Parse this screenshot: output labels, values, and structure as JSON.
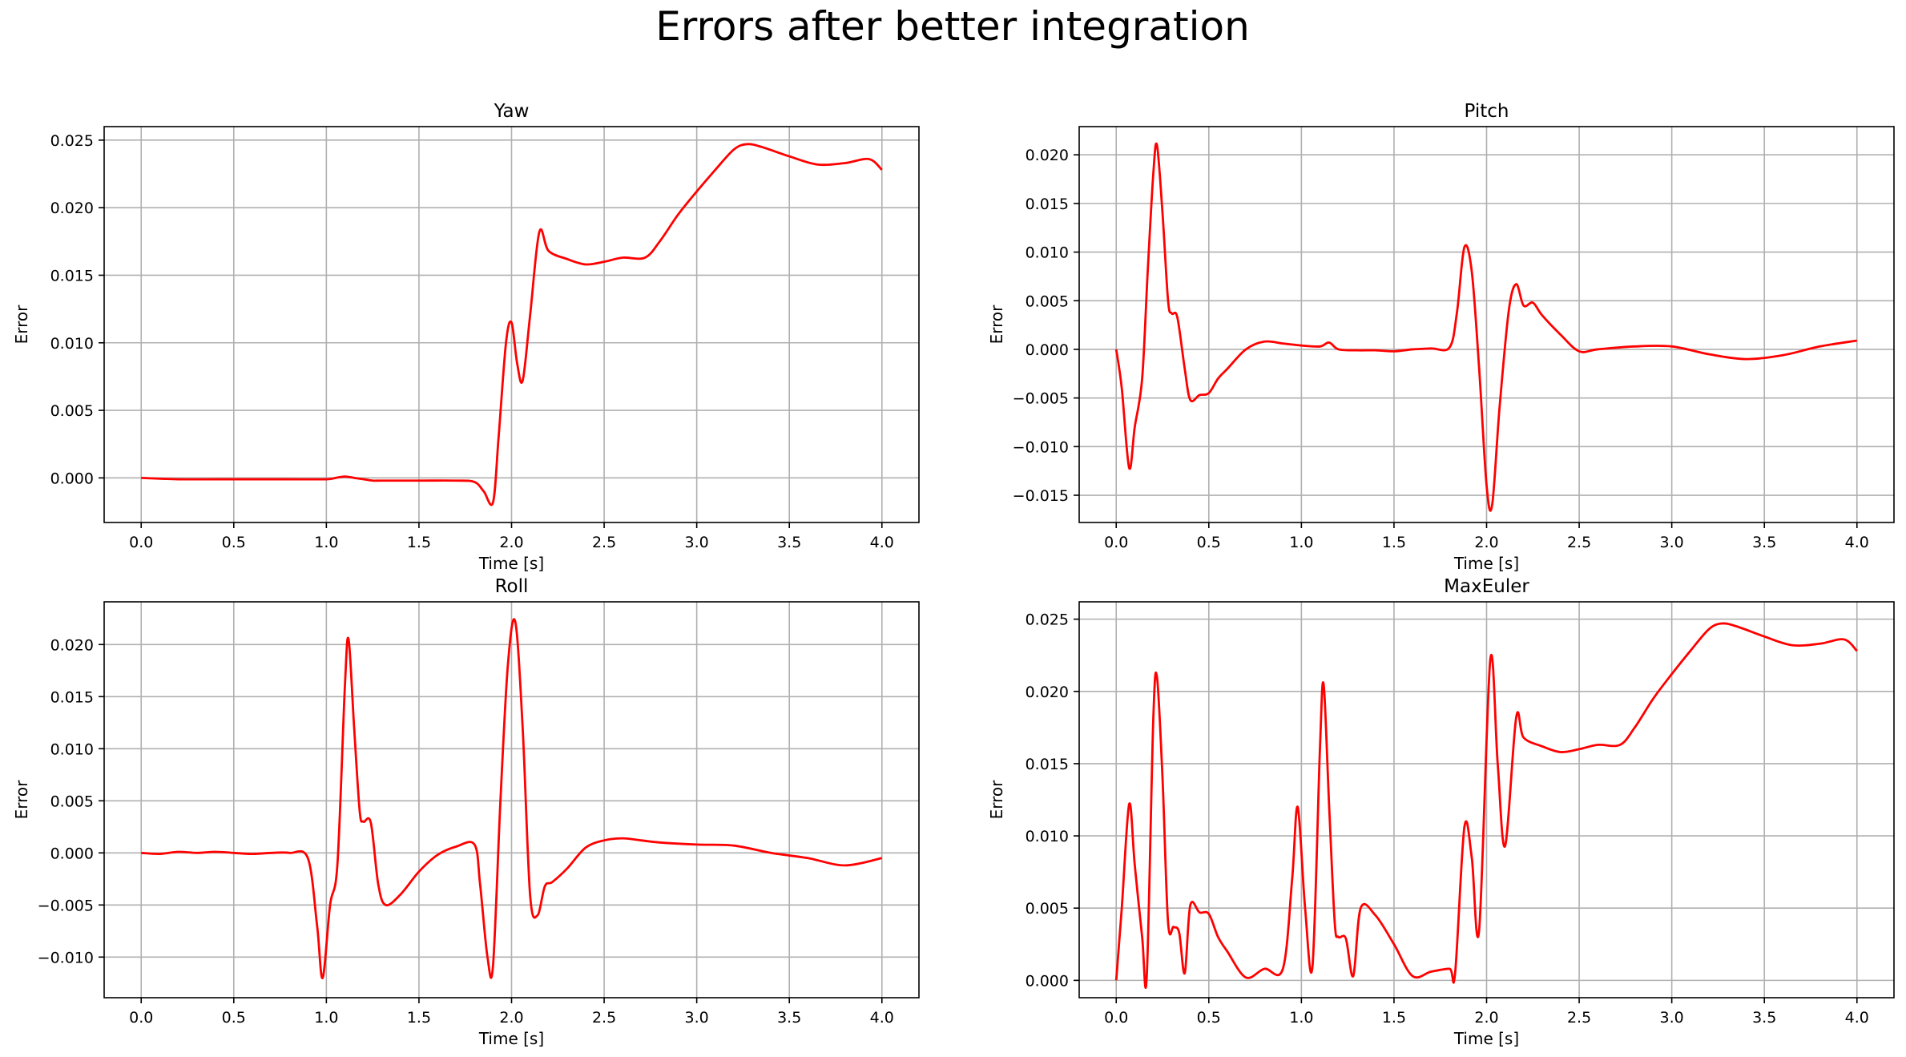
{
  "figure": {
    "title": "Errors after better integration",
    "line_color": "#ff0000",
    "grid_color": "#b0b0b0",
    "axes_color": "#000000"
  },
  "chart_data": [
    {
      "type": "line",
      "title": "Yaw",
      "xlabel": "Time [s]",
      "ylabel": "Error",
      "xlim": [
        -0.2,
        4.2
      ],
      "ylim": [
        -0.0033,
        0.026
      ],
      "xticks": [
        0.0,
        0.5,
        1.0,
        1.5,
        2.0,
        2.5,
        3.0,
        3.5,
        4.0
      ],
      "yticks": [
        0.0,
        0.005,
        0.01,
        0.015,
        0.02,
        0.025
      ],
      "tick_decimals": 3,
      "grid": true,
      "series": [
        {
          "x": [
            0.0,
            0.2,
            0.4,
            0.6,
            0.8,
            1.0,
            1.05,
            1.1,
            1.15,
            1.2,
            1.25,
            1.3,
            1.5,
            1.7,
            1.8,
            1.85,
            1.9,
            1.93,
            1.97,
            2.0,
            2.03,
            2.06,
            2.1,
            2.15,
            2.2,
            2.3,
            2.4,
            2.5,
            2.6,
            2.72,
            2.8,
            2.9,
            3.0,
            3.1,
            3.2,
            3.27,
            3.35,
            3.5,
            3.65,
            3.8,
            3.93,
            4.0
          ],
          "y": [
            0.0,
            -0.0001,
            -0.0001,
            -0.0001,
            -0.0001,
            -0.0001,
            0.0,
            0.0001,
            0.0,
            -0.0001,
            -0.0002,
            -0.0002,
            -0.0002,
            -0.0002,
            -0.0003,
            -0.001,
            -0.0018,
            0.003,
            0.01,
            0.0115,
            0.0085,
            0.0072,
            0.012,
            0.0182,
            0.0168,
            0.0162,
            0.0158,
            0.016,
            0.0163,
            0.0163,
            0.0175,
            0.0195,
            0.0212,
            0.0228,
            0.0243,
            0.0247,
            0.0245,
            0.0238,
            0.0232,
            0.0233,
            0.0236,
            0.0228
          ]
        }
      ]
    },
    {
      "type": "line",
      "title": "Pitch",
      "xlabel": "Time [s]",
      "ylabel": "Error",
      "xlim": [
        -0.2,
        4.2
      ],
      "ylim": [
        -0.0178,
        0.0229
      ],
      "xticks": [
        0.0,
        0.5,
        1.0,
        1.5,
        2.0,
        2.5,
        3.0,
        3.5,
        4.0
      ],
      "yticks": [
        -0.015,
        -0.01,
        -0.005,
        0.0,
        0.005,
        0.01,
        0.015,
        0.02
      ],
      "tick_decimals": 3,
      "grid": true,
      "series": [
        {
          "x": [
            0.0,
            0.03,
            0.07,
            0.1,
            0.14,
            0.17,
            0.2,
            0.22,
            0.25,
            0.28,
            0.3,
            0.33,
            0.37,
            0.4,
            0.45,
            0.5,
            0.55,
            0.6,
            0.7,
            0.8,
            0.9,
            1.0,
            1.1,
            1.15,
            1.2,
            1.3,
            1.4,
            1.5,
            1.6,
            1.7,
            1.8,
            1.84,
            1.88,
            1.92,
            1.96,
            2.0,
            2.03,
            2.07,
            2.12,
            2.16,
            2.2,
            2.25,
            2.3,
            2.4,
            2.5,
            2.6,
            2.8,
            3.0,
            3.2,
            3.4,
            3.6,
            3.8,
            4.0
          ],
          "y": [
            0.0,
            -0.004,
            -0.0122,
            -0.008,
            -0.003,
            0.008,
            0.018,
            0.021,
            0.014,
            0.005,
            0.0037,
            0.0033,
            -0.002,
            -0.0052,
            -0.0047,
            -0.0045,
            -0.003,
            -0.002,
            0.0,
            0.0008,
            0.0006,
            0.0004,
            0.0003,
            0.0007,
            0.0,
            -0.0001,
            -0.0001,
            -0.0002,
            0.0,
            0.0001,
            0.0002,
            0.0038,
            0.0105,
            0.008,
            -0.002,
            -0.014,
            -0.016,
            -0.006,
            0.004,
            0.0067,
            0.0045,
            0.0048,
            0.0035,
            0.0015,
            -0.0002,
            0.0,
            0.0003,
            0.0003,
            -0.0005,
            -0.001,
            -0.0006,
            0.0003,
            0.0009
          ]
        }
      ]
    },
    {
      "type": "line",
      "title": "Roll",
      "xlabel": "Time [s]",
      "ylabel": "Error",
      "xlim": [
        -0.2,
        4.2
      ],
      "ylim": [
        -0.0139,
        0.0241
      ],
      "xticks": [
        0.0,
        0.5,
        1.0,
        1.5,
        2.0,
        2.5,
        3.0,
        3.5,
        4.0
      ],
      "yticks": [
        -0.01,
        -0.005,
        0.0,
        0.005,
        0.01,
        0.015,
        0.02
      ],
      "tick_decimals": 3,
      "grid": true,
      "series": [
        {
          "x": [
            0.0,
            0.1,
            0.2,
            0.3,
            0.4,
            0.5,
            0.6,
            0.7,
            0.8,
            0.9,
            0.95,
            0.98,
            1.02,
            1.06,
            1.1,
            1.12,
            1.15,
            1.18,
            1.2,
            1.24,
            1.28,
            1.32,
            1.4,
            1.5,
            1.6,
            1.7,
            1.8,
            1.83,
            1.87,
            1.9,
            1.94,
            1.98,
            2.02,
            2.06,
            2.1,
            2.14,
            2.18,
            2.22,
            2.3,
            2.4,
            2.5,
            2.6,
            2.7,
            2.8,
            3.0,
            3.2,
            3.4,
            3.6,
            3.8,
            4.0
          ],
          "y": [
            0.0,
            -0.0001,
            0.0001,
            0.0,
            0.0001,
            0.0,
            -0.0001,
            0.0,
            0.0,
            -0.0005,
            -0.007,
            -0.012,
            -0.005,
            -0.001,
            0.016,
            0.0205,
            0.012,
            0.004,
            0.003,
            0.0029,
            -0.003,
            -0.005,
            -0.004,
            -0.0018,
            -0.0002,
            0.0006,
            0.0008,
            -0.003,
            -0.01,
            -0.0108,
            0.005,
            0.018,
            0.0222,
            0.012,
            -0.004,
            -0.006,
            -0.0032,
            -0.0028,
            -0.0015,
            0.0005,
            0.0012,
            0.0014,
            0.0012,
            0.001,
            0.0008,
            0.0007,
            0.0,
            -0.0005,
            -0.0012,
            -0.0005
          ]
        }
      ]
    },
    {
      "type": "line",
      "title": "MaxEuler",
      "xlabel": "Time [s]",
      "ylabel": "Error",
      "xlim": [
        -0.2,
        4.2
      ],
      "ylim": [
        -0.0012,
        0.0262
      ],
      "xticks": [
        0.0,
        0.5,
        1.0,
        1.5,
        2.0,
        2.5,
        3.0,
        3.5,
        4.0
      ],
      "yticks": [
        0.0,
        0.005,
        0.01,
        0.015,
        0.02,
        0.025
      ],
      "tick_decimals": 3,
      "grid": true,
      "series": [
        {
          "x": [
            0.0,
            0.03,
            0.07,
            0.1,
            0.14,
            0.165,
            0.2,
            0.22,
            0.25,
            0.28,
            0.31,
            0.34,
            0.37,
            0.4,
            0.45,
            0.5,
            0.55,
            0.6,
            0.7,
            0.8,
            0.9,
            0.95,
            0.98,
            1.02,
            1.06,
            1.1,
            1.12,
            1.15,
            1.18,
            1.2,
            1.24,
            1.28,
            1.32,
            1.4,
            1.5,
            1.6,
            1.7,
            1.8,
            1.83,
            1.88,
            1.92,
            1.96,
            2.02,
            2.06,
            2.1,
            2.16,
            2.2,
            2.3,
            2.4,
            2.5,
            2.6,
            2.72,
            2.8,
            2.9,
            3.0,
            3.1,
            3.2,
            3.27,
            3.35,
            3.5,
            3.65,
            3.8,
            3.93,
            4.0
          ],
          "y": [
            0.0,
            0.005,
            0.0122,
            0.008,
            0.003,
            0.0003,
            0.018,
            0.021,
            0.014,
            0.004,
            0.0037,
            0.0033,
            0.0005,
            0.0052,
            0.0047,
            0.0046,
            0.003,
            0.002,
            0.0002,
            0.0008,
            0.0008,
            0.007,
            0.012,
            0.005,
            0.001,
            0.016,
            0.0205,
            0.012,
            0.004,
            0.003,
            0.0029,
            0.0003,
            0.005,
            0.0045,
            0.0025,
            0.0003,
            0.0006,
            0.0008,
            0.0005,
            0.0106,
            0.0085,
            0.0035,
            0.0222,
            0.015,
            0.0093,
            0.0182,
            0.0168,
            0.0162,
            0.0158,
            0.016,
            0.0163,
            0.0163,
            0.0175,
            0.0195,
            0.0212,
            0.0228,
            0.0243,
            0.0247,
            0.0245,
            0.0238,
            0.0232,
            0.0233,
            0.0236,
            0.0228
          ]
        }
      ]
    }
  ]
}
